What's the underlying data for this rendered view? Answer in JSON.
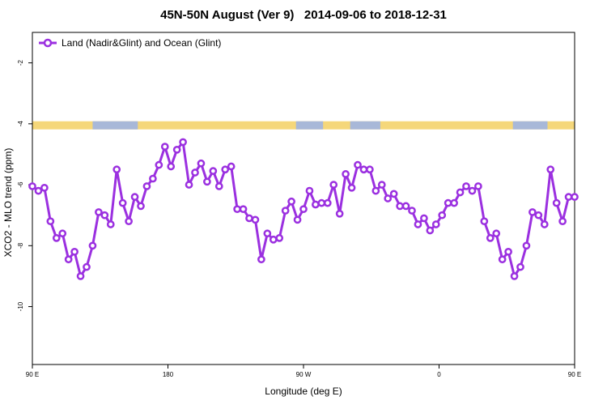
{
  "chart_data": {
    "type": "line",
    "title": "45N-50N August (Ver 9)   2014-09-06 to 2018-12-31",
    "xlabel": "Longitude (deg E)",
    "ylabel": "XCO2 - MLO trend (ppm)",
    "xlim": [
      90,
      450
    ],
    "ylim": [
      -11.9,
      -1.0
    ],
    "x_ticks": [
      {
        "value": 90,
        "label": "90 E"
      },
      {
        "value": 180,
        "label": "180"
      },
      {
        "value": 270,
        "label": "90 W"
      },
      {
        "value": 360,
        "label": "0"
      },
      {
        "value": 450,
        "label": "90 E"
      },
      {
        "value": 540,
        "label": "180"
      }
    ],
    "y_ticks": [
      {
        "value": -2,
        "label": "-2"
      },
      {
        "value": -4,
        "label": "-4"
      },
      {
        "value": -6,
        "label": "-6"
      },
      {
        "value": -8,
        "label": "-8"
      },
      {
        "value": -10,
        "label": "-10"
      }
    ],
    "grid": false,
    "legend_position": "top-left",
    "land_ocean_strip": {
      "y_value": -4.05,
      "land_color": "#f5d77a",
      "ocean_color": "#a8b8d8",
      "ocean_ranges_x": [
        [
          130,
          160
        ],
        [
          265,
          283
        ],
        [
          301,
          321
        ],
        [
          409,
          432
        ]
      ]
    },
    "series": [
      {
        "name": "Land (Nadir&Glint) and Ocean (Glint)",
        "color": "#9b30e0",
        "x": [
          90,
          94,
          98,
          102,
          106,
          110,
          114,
          118,
          122,
          126,
          130,
          134,
          138,
          142,
          146,
          150,
          154,
          158,
          162,
          166,
          170,
          174,
          178,
          182,
          186,
          190,
          194,
          198,
          202,
          206,
          210,
          214,
          218,
          222,
          226,
          230,
          234,
          238,
          242,
          246,
          250,
          254,
          258,
          262,
          266,
          270,
          274,
          278,
          282,
          286,
          290,
          294,
          298,
          302,
          306,
          310,
          314,
          318,
          322,
          326,
          330,
          334,
          338,
          342,
          346,
          350,
          354,
          358,
          362,
          366,
          370,
          374,
          378,
          382,
          386,
          390,
          394,
          398,
          402,
          406,
          410,
          414,
          418,
          422,
          426,
          430,
          434,
          438,
          442,
          446,
          450
        ],
        "values": [
          -6.05,
          -6.2,
          -6.1,
          -7.2,
          -7.75,
          -7.6,
          -8.45,
          -8.2,
          -9.0,
          -8.7,
          -8.0,
          -6.9,
          -7.0,
          -7.3,
          -5.5,
          -6.6,
          -7.2,
          -6.4,
          -6.7,
          -6.05,
          -5.8,
          -5.35,
          -4.75,
          -5.4,
          -4.85,
          -4.6,
          -6.0,
          -5.6,
          -5.3,
          -5.9,
          -5.55,
          -6.05,
          -5.5,
          -5.4,
          -6.8,
          -6.8,
          -7.1,
          -7.15,
          -8.45,
          -7.6,
          -7.8,
          -7.75,
          -6.85,
          -6.55,
          -7.15,
          -6.8,
          -6.2,
          -6.65,
          -6.6,
          -6.6,
          -6.0,
          -6.95,
          -5.65,
          -6.1,
          -5.35,
          -5.5,
          -5.5,
          -6.2,
          -6.0,
          -6.45,
          -6.3,
          -6.7,
          -6.7,
          -6.85,
          -7.3,
          -7.1,
          -7.5,
          -7.3,
          -7.0,
          -6.6,
          -6.6,
          -6.25,
          -6.05,
          -6.2,
          -6.05,
          -7.2,
          -7.75,
          -7.6,
          -8.45,
          -8.2,
          -9.0,
          -8.7,
          -8.0,
          -6.9,
          -7.0,
          -7.3,
          -5.5,
          -6.6,
          -7.2,
          -6.4,
          -6.4
        ]
      }
    ]
  }
}
